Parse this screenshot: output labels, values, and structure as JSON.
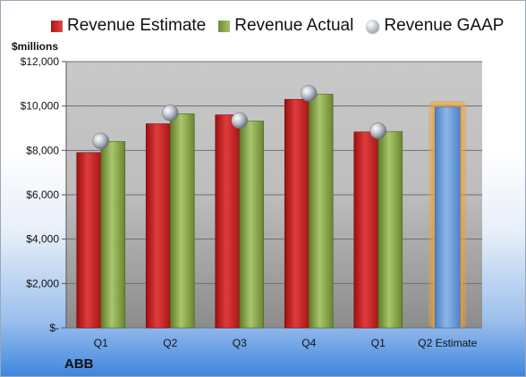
{
  "legend": {
    "estimate": "Revenue Estimate",
    "actual": "Revenue Actual",
    "gaap": "Revenue GAAP"
  },
  "unit_label": "$millions",
  "company": "ABB",
  "colors": {
    "estimate": "#c8202a",
    "actual": "#8fae4c",
    "gaap": "#b9bec6",
    "forecast": "#6f9ed8",
    "forecast_glow": "#f0a030"
  },
  "chart_data": {
    "type": "bar",
    "categories": [
      "Q1",
      "Q2",
      "Q3",
      "Q4",
      "Q1",
      "Q2 Estimate"
    ],
    "series": [
      {
        "name": "Revenue Estimate",
        "values": [
          7900,
          9200,
          9600,
          10300,
          8830,
          null
        ]
      },
      {
        "name": "Revenue Actual",
        "values": [
          8400,
          9650,
          9320,
          10530,
          8850,
          null
        ]
      },
      {
        "name": "Revenue GAAP",
        "values": [
          8420,
          9690,
          9350,
          10570,
          8880,
          null
        ]
      }
    ],
    "forecast": {
      "category": "Q2 Estimate",
      "value": 9950
    },
    "y_ticks": [
      "$-",
      "$2,000",
      "$4,000",
      "$6,000",
      "$8,000",
      "$10,000",
      "$12,000"
    ],
    "ylim": [
      0,
      12000
    ],
    "ylabel": "$millions",
    "grid": true,
    "legend_position": "top"
  }
}
